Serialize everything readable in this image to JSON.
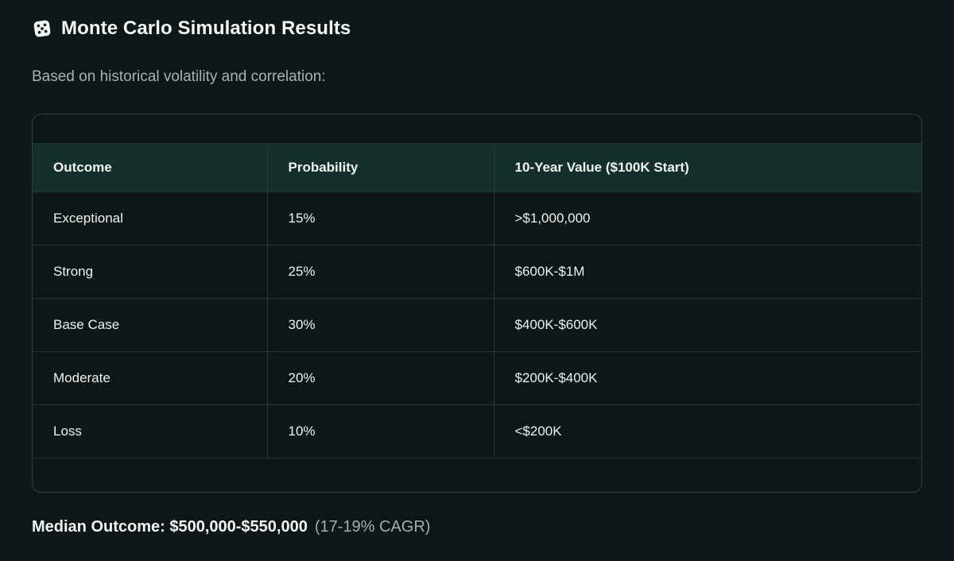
{
  "header": {
    "icon": "dice-icon",
    "title": "Monte Carlo Simulation Results",
    "subtitle": "Based on historical volatility and correlation:"
  },
  "table": {
    "columns": [
      "Outcome",
      "Probability",
      "10-Year Value ($100K Start)"
    ],
    "rows": [
      [
        "Exceptional",
        "15%",
        ">$1,000,000"
      ],
      [
        "Strong",
        "25%",
        "$600K-$1M"
      ],
      [
        "Base Case",
        "30%",
        "$400K-$600K"
      ],
      [
        "Moderate",
        "20%",
        "$200K-$400K"
      ],
      [
        "Loss",
        "10%",
        "<$200K"
      ]
    ]
  },
  "footer": {
    "median_label": "Median Outcome: $500,000-$550,000",
    "cagr_note": "(17-19% CAGR)"
  },
  "colors": {
    "background": "#0d1717",
    "header_row_background": "#15302b",
    "outer_border": "#2e403d",
    "inner_border": "#263836",
    "text_primary": "#f2f4f4",
    "text_secondary": "#a9b2b2"
  }
}
